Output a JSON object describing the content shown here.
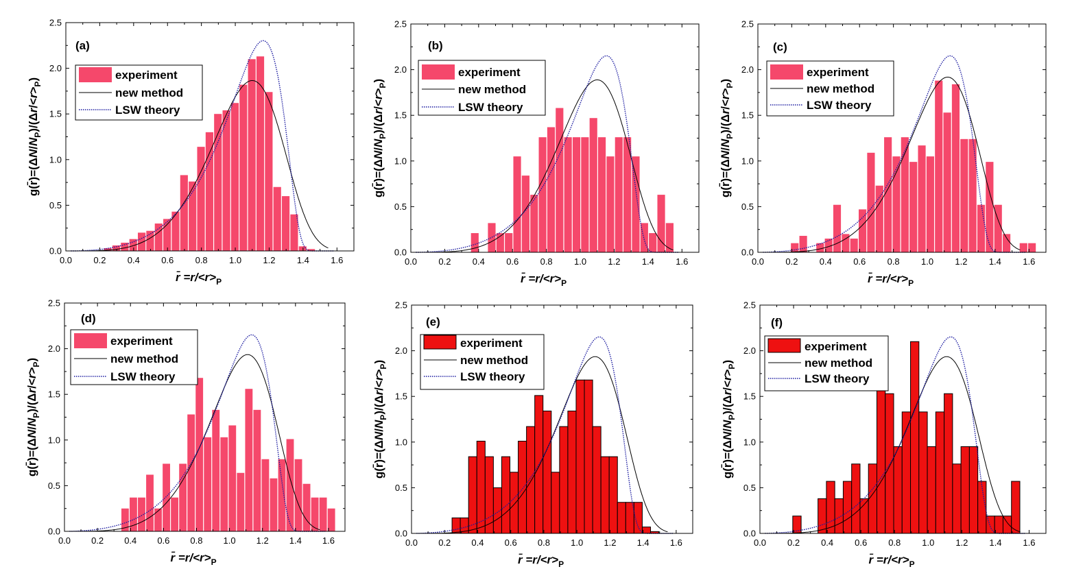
{
  "figure": {
    "xlabel": "r̄ =r/<r>P",
    "ylabel": "g(r̄)=(ΔN/NP)/(Δr/<r>P)",
    "colors": {
      "pink": "#f5486b",
      "red": "#ee1111",
      "curve_new": "#000000",
      "curve_lsw": "#1a1aa0"
    }
  },
  "chart_data": [
    {
      "type": "bar",
      "panel_label": "(a)",
      "xlim": [
        0,
        1.7
      ],
      "ylim": [
        0,
        2.5
      ],
      "xticks": [
        "0.0",
        "0.2",
        "0.4",
        "0.6",
        "0.8",
        "1.0",
        "1.2",
        "1.4",
        "1.6"
      ],
      "yticks": [
        "0.0",
        "0.5",
        "1.0",
        "1.5",
        "2.0",
        "2.5"
      ],
      "bar_style": "pink",
      "legend": [
        "experiment",
        "new method",
        "LSW theory"
      ],
      "bin_width": 0.05,
      "x": [
        0.25,
        0.3,
        0.35,
        0.4,
        0.45,
        0.5,
        0.55,
        0.6,
        0.65,
        0.7,
        0.75,
        0.8,
        0.85,
        0.9,
        0.95,
        1.0,
        1.05,
        1.1,
        1.15,
        1.2,
        1.25,
        1.3,
        1.35,
        1.4,
        1.45
      ],
      "values": [
        0.03,
        0.06,
        0.09,
        0.13,
        0.2,
        0.22,
        0.3,
        0.35,
        0.43,
        0.83,
        0.76,
        1.14,
        1.3,
        1.5,
        1.54,
        1.62,
        1.82,
        2.1,
        2.13,
        1.74,
        0.7,
        0.6,
        0.4,
        0.05,
        0.02
      ]
    },
    {
      "type": "bar",
      "panel_label": "(b)",
      "xlim": [
        0,
        1.7
      ],
      "ylim": [
        0,
        2.5
      ],
      "xticks": [
        "0.0",
        "0.2",
        "0.4",
        "0.6",
        "0.8",
        "1.0",
        "1.2",
        "1.4",
        "1.6"
      ],
      "yticks": [
        "0.0",
        "0.5",
        "1.0",
        "1.5",
        "2.0",
        "2.5"
      ],
      "bar_style": "pink",
      "legend": [
        "experiment",
        "new method",
        "LSW theory"
      ],
      "bin_width": 0.05,
      "x": [
        0.38,
        0.48,
        0.53,
        0.58,
        0.63,
        0.68,
        0.73,
        0.78,
        0.83,
        0.88,
        0.93,
        0.98,
        1.03,
        1.08,
        1.13,
        1.18,
        1.23,
        1.28,
        1.33,
        1.38,
        1.43,
        1.48,
        1.53
      ],
      "values": [
        0.21,
        0.32,
        0.21,
        0.21,
        1.05,
        0.84,
        0.63,
        1.26,
        1.37,
        1.58,
        1.26,
        1.26,
        1.26,
        1.47,
        1.26,
        1.05,
        1.26,
        1.26,
        1.05,
        0.32,
        0.21,
        0.63,
        0.32
      ]
    },
    {
      "type": "bar",
      "panel_label": "(c)",
      "xlim": [
        0,
        1.7
      ],
      "ylim": [
        0,
        2.5
      ],
      "xticks": [
        "0.0",
        "0.2",
        "0.4",
        "0.6",
        "0.8",
        "1.0",
        "1.2",
        "1.4",
        "1.6"
      ],
      "yticks": [
        "0.0",
        "0.5",
        "1.0",
        "1.5",
        "2.0",
        "2.5"
      ],
      "bar_style": "pink",
      "legend": [
        "experiment",
        "new method",
        "LSW theory"
      ],
      "bin_width": 0.05,
      "x": [
        0.22,
        0.27,
        0.37,
        0.42,
        0.47,
        0.52,
        0.57,
        0.62,
        0.67,
        0.72,
        0.77,
        0.82,
        0.87,
        0.92,
        0.97,
        1.02,
        1.07,
        1.12,
        1.17,
        1.22,
        1.27,
        1.32,
        1.37,
        1.42,
        1.47,
        1.57,
        1.62
      ],
      "values": [
        0.1,
        0.18,
        0.1,
        0.15,
        0.52,
        0.2,
        0.15,
        0.47,
        1.09,
        0.73,
        1.26,
        1.05,
        1.26,
        0.99,
        1.17,
        1.05,
        1.88,
        1.53,
        1.84,
        1.24,
        1.24,
        0.52,
        0.99,
        0.52,
        0.2,
        0.1,
        0.1
      ]
    },
    {
      "type": "bar",
      "panel_label": "(d)",
      "xlim": [
        0,
        1.7
      ],
      "ylim": [
        0,
        2.5
      ],
      "xticks": [
        "0.0",
        "0.2",
        "0.4",
        "0.6",
        "0.8",
        "1.0",
        "1.2",
        "1.4",
        "1.6"
      ],
      "yticks": [
        "0.0",
        "0.5",
        "1.0",
        "1.5",
        "2.0",
        "2.5"
      ],
      "bar_style": "pink",
      "legend": [
        "experiment",
        "new method",
        "LSW theory"
      ],
      "bin_width": 0.05,
      "x": [
        0.37,
        0.42,
        0.47,
        0.52,
        0.57,
        0.62,
        0.67,
        0.72,
        0.77,
        0.82,
        0.87,
        0.92,
        0.97,
        1.02,
        1.07,
        1.12,
        1.17,
        1.22,
        1.27,
        1.32,
        1.37,
        1.42,
        1.47,
        1.52,
        1.57,
        1.62
      ],
      "values": [
        0.25,
        0.37,
        0.37,
        0.62,
        0.25,
        0.74,
        0.37,
        0.74,
        1.28,
        1.68,
        1.03,
        1.33,
        1.03,
        1.16,
        0.64,
        1.56,
        1.33,
        0.79,
        0.58,
        0.79,
        1.01,
        0.79,
        0.52,
        0.37,
        0.37,
        0.25
      ]
    },
    {
      "type": "bar",
      "panel_label": "(e)",
      "xlim": [
        0,
        1.7
      ],
      "ylim": [
        0,
        2.5
      ],
      "xticks": [
        "0.0",
        "0.2",
        "0.4",
        "0.6",
        "0.8",
        "1.0",
        "1.2",
        "1.4",
        "1.6"
      ],
      "yticks": [
        "0.0",
        "0.5",
        "1.0",
        "1.5",
        "2.0",
        "2.5"
      ],
      "bar_style": "red",
      "legend": [
        "experiment",
        "new method",
        "LSW theory"
      ],
      "bin_width": 0.05,
      "x": [
        0.27,
        0.32,
        0.37,
        0.42,
        0.47,
        0.52,
        0.57,
        0.62,
        0.67,
        0.72,
        0.77,
        0.82,
        0.87,
        0.92,
        0.97,
        1.02,
        1.07,
        1.12,
        1.17,
        1.22,
        1.27,
        1.32,
        1.37,
        1.42,
        1.47
      ],
      "values": [
        0.17,
        0.17,
        0.84,
        1.01,
        0.84,
        0.5,
        0.84,
        0.67,
        1.01,
        1.17,
        1.51,
        1.34,
        0.67,
        1.17,
        1.34,
        1.68,
        1.68,
        1.17,
        0.84,
        0.84,
        0.34,
        0.34,
        0.34,
        0.07,
        0.02
      ]
    },
    {
      "type": "bar",
      "panel_label": "(f)",
      "xlim": [
        0,
        1.7
      ],
      "ylim": [
        0,
        2.5
      ],
      "xticks": [
        "0.0",
        "0.2",
        "0.4",
        "0.6",
        "0.8",
        "1.0",
        "1.2",
        "1.4",
        "1.6"
      ],
      "yticks": [
        "0.0",
        "0.5",
        "1.0",
        "1.5",
        "2.0",
        "2.5"
      ],
      "bar_style": "red",
      "legend": [
        "experiment",
        "new method",
        "LSW theory"
      ],
      "bin_width": 0.05,
      "x": [
        0.22,
        0.37,
        0.42,
        0.47,
        0.52,
        0.57,
        0.62,
        0.67,
        0.72,
        0.77,
        0.82,
        0.87,
        0.92,
        0.97,
        1.02,
        1.07,
        1.12,
        1.17,
        1.22,
        1.27,
        1.32,
        1.37,
        1.42,
        1.47,
        1.52
      ],
      "values": [
        0.19,
        0.38,
        0.57,
        0.38,
        0.57,
        0.76,
        0.38,
        0.76,
        1.72,
        1.53,
        0.95,
        1.33,
        2.1,
        1.33,
        0.95,
        1.33,
        1.53,
        0.76,
        0.95,
        0.95,
        0.57,
        0.19,
        0.19,
        0.19,
        0.57
      ]
    }
  ]
}
